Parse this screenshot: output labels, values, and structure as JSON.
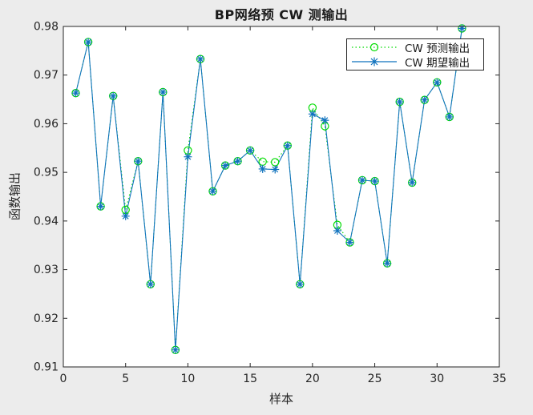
{
  "chart_data": {
    "type": "line",
    "title": "BP网络预 CW 测输出",
    "xlabel": "样本",
    "ylabel": "函数输出",
    "xlim": [
      0,
      35
    ],
    "ylim": [
      0.91,
      0.98
    ],
    "x_ticks": [
      0,
      5,
      10,
      15,
      20,
      25,
      30,
      35
    ],
    "y_ticks": [
      0.91,
      0.92,
      0.93,
      0.94,
      0.95,
      0.96,
      0.97,
      0.98
    ],
    "grid": false,
    "legend_position": "top-right",
    "x": [
      1,
      2,
      3,
      4,
      5,
      6,
      7,
      8,
      9,
      10,
      11,
      12,
      13,
      14,
      15,
      16,
      17,
      18,
      19,
      20,
      21,
      22,
      23,
      24,
      25,
      26,
      27,
      28,
      29,
      30,
      31,
      32
    ],
    "series": [
      {
        "name": "CW 预测输出",
        "color": "#00dc00",
        "line_style": "dotted",
        "marker": "circle",
        "values": [
          0.9663,
          0.9768,
          0.943,
          0.9657,
          0.9423,
          0.9523,
          0.927,
          0.9665,
          0.9135,
          0.9545,
          0.9733,
          0.9461,
          0.9514,
          0.9523,
          0.9545,
          0.9522,
          0.9521,
          0.9555,
          0.927,
          0.9633,
          0.9595,
          0.9392,
          0.9356,
          0.9484,
          0.9482,
          0.9313,
          0.9645,
          0.9479,
          0.9649,
          0.9685,
          0.9614,
          0.9796
        ]
      },
      {
        "name": "CW 期望输出",
        "color": "#0f72bd",
        "line_style": "solid",
        "marker": "asterisk",
        "values": [
          0.9663,
          0.9768,
          0.943,
          0.9657,
          0.941,
          0.9523,
          0.927,
          0.9665,
          0.9135,
          0.9532,
          0.9733,
          0.9461,
          0.9514,
          0.9523,
          0.9545,
          0.9507,
          0.9506,
          0.9555,
          0.927,
          0.962,
          0.9607,
          0.938,
          0.9356,
          0.9484,
          0.9482,
          0.9313,
          0.9645,
          0.9479,
          0.9649,
          0.9685,
          0.9614,
          0.9796
        ]
      }
    ],
    "colors": {
      "figure_background": "#ececec",
      "plot_background": "#ffffff",
      "axis": "#262626",
      "predicted": "#00dc00",
      "expected": "#0f72bd"
    }
  }
}
